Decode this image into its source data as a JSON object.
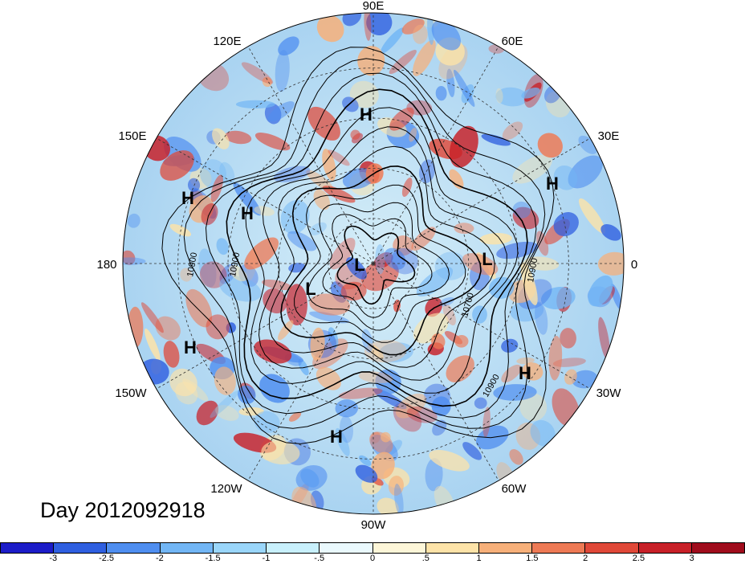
{
  "title": "Day 2012092918",
  "longitude_labels": {
    "lon_90e": "90E",
    "lon_60e": "60E",
    "lon_30e": "30E",
    "lon_0": "0",
    "lon_30w": "30W",
    "lon_60w": "60W",
    "lon_90w": "90W",
    "lon_120w": "120W",
    "lon_150w": "150W",
    "lon_180": "180",
    "lon_150e": "150E",
    "lon_120e": "120E"
  },
  "pressure_centers": [
    {
      "label": "H"
    },
    {
      "label": "H"
    },
    {
      "label": "H"
    },
    {
      "label": "H"
    },
    {
      "label": "H"
    },
    {
      "label": "H"
    },
    {
      "label": "H"
    },
    {
      "label": "L"
    },
    {
      "label": "L"
    },
    {
      "label": "L"
    }
  ],
  "contour_labels": [
    "10900",
    "10900",
    "10700",
    "10900",
    "10900"
  ],
  "colorbar": {
    "ticks": [
      "-3",
      "-2.5",
      "-2",
      "-1.5",
      "-1",
      "-.5",
      "0",
      ".5",
      "1",
      "1.5",
      "2",
      "2.5",
      "3"
    ],
    "colors": [
      "#1c1cc8",
      "#2f5fe0",
      "#4f8ef0",
      "#72b6f5",
      "#9ad6fa",
      "#c8f0fc",
      "#eaf9fd",
      "#fdf6d8",
      "#fde3a8",
      "#f7b07a",
      "#ee7a55",
      "#e04838",
      "#c82028",
      "#a00c1c"
    ]
  }
}
